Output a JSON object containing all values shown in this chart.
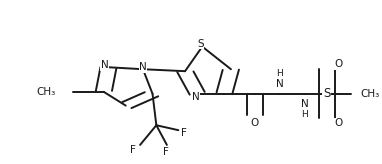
{
  "bg_color": "#ffffff",
  "line_color": "#1a1a1a",
  "line_width": 1.4,
  "font_size": 7.5,
  "figsize": [
    3.82,
    1.64
  ],
  "dpi": 100,
  "xlim": [
    0.0,
    1.0
  ],
  "ylim": [
    0.0,
    1.0
  ]
}
